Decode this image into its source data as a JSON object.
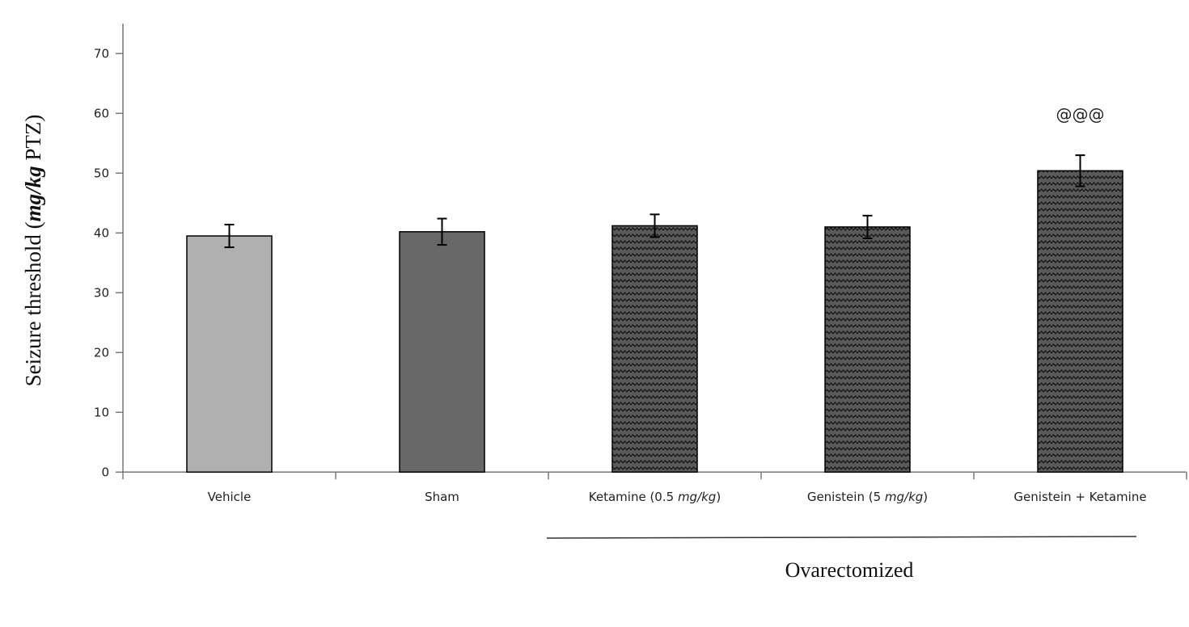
{
  "chart_data": {
    "type": "bar",
    "title": "",
    "xlabel": "",
    "ylabel": "Seizure threshold (mg/kg PTZ)",
    "ylabel_italic_part": "mg/kg",
    "ylim": [
      0,
      75
    ],
    "yticks": [
      0,
      10,
      20,
      30,
      40,
      50,
      60,
      70
    ],
    "grid": false,
    "categories": [
      "Vehicle",
      "Sham",
      "Ketamine (0.5 mg/kg)",
      "Genistein (5 mg/kg)",
      "Genistein + Ketamine"
    ],
    "italic_unit": "mg/kg",
    "values": [
      39.5,
      40.2,
      41.2,
      41.0,
      50.4
    ],
    "errors": [
      1.9,
      2.2,
      1.9,
      1.9,
      2.6
    ],
    "fills": [
      {
        "color": "#b0b0b0",
        "pattern": "solid"
      },
      {
        "color": "#686868",
        "pattern": "solid"
      },
      {
        "color": "#5a5a5a",
        "pattern": "zigzag"
      },
      {
        "color": "#5a5a5a",
        "pattern": "zigzag"
      },
      {
        "color": "#5a5a5a",
        "pattern": "zigzag"
      }
    ],
    "annotations": [
      {
        "category": "Genistein + Ketamine",
        "text": "@@@"
      }
    ],
    "group_bracket": {
      "label": "Ovarectomized",
      "categories": [
        "Ketamine (0.5 mg/kg)",
        "Genistein (5 mg/kg)",
        "Genistein + Ketamine"
      ]
    }
  }
}
